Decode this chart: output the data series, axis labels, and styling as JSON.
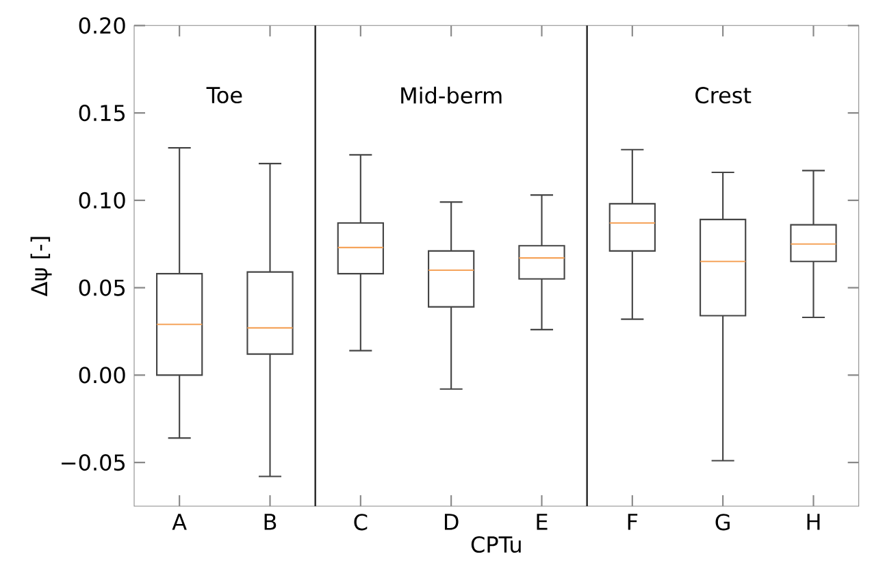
{
  "chart_data": {
    "type": "box",
    "xlabel": "CPTu",
    "ylabel": "Δψ [-]",
    "categories": [
      "A",
      "B",
      "C",
      "D",
      "E",
      "F",
      "G",
      "H"
    ],
    "series": [
      {
        "color": "#444444",
        "boxes": [
          {
            "low": -0.036,
            "q1": 0.0,
            "median": 0.029,
            "q3": 0.058,
            "high": 0.13
          },
          {
            "low": -0.058,
            "q1": 0.012,
            "median": 0.027,
            "q3": 0.059,
            "high": 0.121
          },
          {
            "low": 0.014,
            "q1": 0.058,
            "median": 0.073,
            "q3": 0.087,
            "high": 0.126
          },
          {
            "low": -0.008,
            "q1": 0.039,
            "median": 0.06,
            "q3": 0.071,
            "high": 0.099
          },
          {
            "low": 0.026,
            "q1": 0.055,
            "median": 0.067,
            "q3": 0.074,
            "high": 0.103
          },
          {
            "low": 0.032,
            "q1": 0.071,
            "median": 0.087,
            "q3": 0.098,
            "high": 0.129
          },
          {
            "low": -0.049,
            "q1": 0.034,
            "median": 0.065,
            "q3": 0.089,
            "high": 0.116
          },
          {
            "low": 0.033,
            "q1": 0.065,
            "median": 0.075,
            "q3": 0.086,
            "high": 0.117
          }
        ]
      }
    ],
    "ylim": [
      -0.075,
      0.2
    ],
    "yticks": [
      {
        "value": -0.05,
        "label": "−0.05"
      },
      {
        "value": 0.0,
        "label": "0.00"
      },
      {
        "value": 0.05,
        "label": "0.05"
      },
      {
        "value": 0.1,
        "label": "0.10"
      },
      {
        "value": 0.15,
        "label": "0.15"
      },
      {
        "value": 0.2,
        "label": "0.20"
      }
    ],
    "annotations": [
      "Toe",
      "Mid-berm",
      "Crest"
    ],
    "grid": false
  }
}
